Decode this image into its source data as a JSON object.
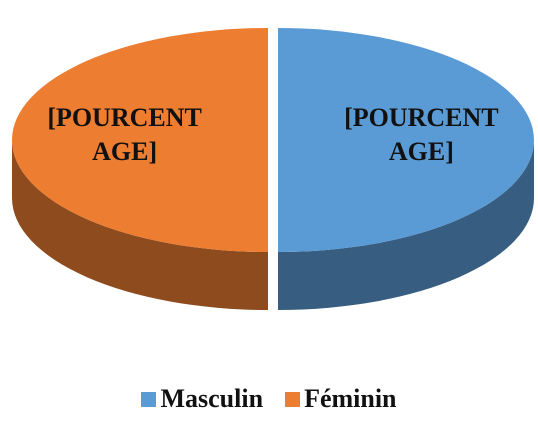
{
  "chart_data": {
    "type": "pie3d",
    "categories": [
      "Masculin",
      "Féminin"
    ],
    "values": [
      50,
      50
    ],
    "value_labels": [
      "[POURCENT AGE]",
      "[POURCENT AGE]"
    ],
    "colors": [
      "#5b9bd5",
      "#ed7d31"
    ],
    "legend": "bottom"
  }
}
